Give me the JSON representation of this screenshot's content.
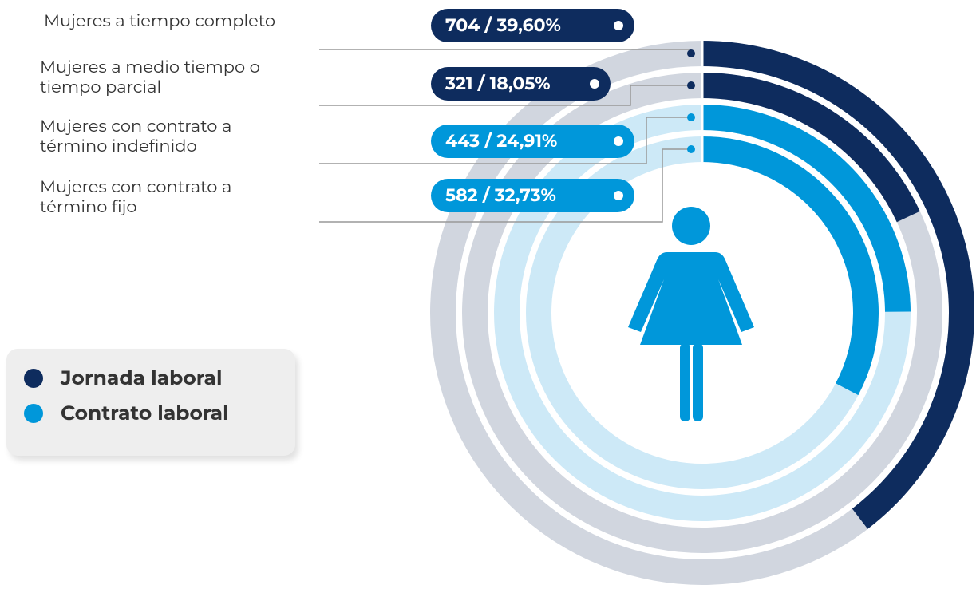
{
  "chart_data": {
    "type": "radial-bar",
    "categories": [
      "Mujeres a tiempo completo",
      "Mujeres a medio tiempo o tiempo parcial",
      "Mujeres con contrato a término indefinido",
      "Mujeres con contrato a término fijo"
    ],
    "values": [
      39.6,
      18.05,
      24.91,
      32.73
    ],
    "value_labels": [
      "704 / 39,60%",
      "321 / 18,05%",
      "443 / 24,91%",
      "582 / 32,73%"
    ],
    "group": [
      0,
      0,
      1,
      1
    ],
    "series": [
      {
        "name": "Jornada laboral",
        "color": "#0e2c5e",
        "track": "#d1d6df"
      },
      {
        "name": "Contrato laboral",
        "color": "#0097da",
        "track": "#cde9f7"
      }
    ]
  }
}
